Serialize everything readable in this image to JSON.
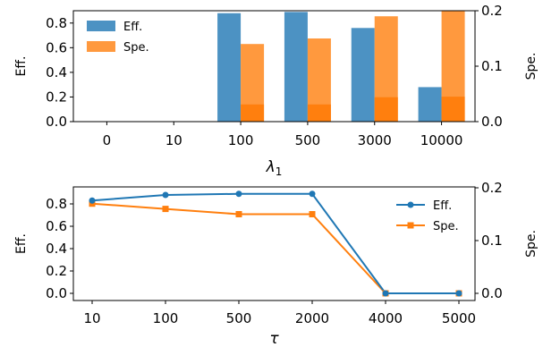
{
  "colors": {
    "eff": "#1f77b4",
    "spe": "#ff7f0e"
  },
  "chart_data": [
    {
      "type": "bar",
      "xlabel_base": "λ",
      "xlabel_sub": "1",
      "ylabel_left": "Eff.",
      "ylabel_right": "Spe.",
      "categories": [
        "0",
        "10",
        "100",
        "500",
        "3000",
        "10000"
      ],
      "ylim_left": [
        0,
        0.9
      ],
      "ylim_right": [
        0,
        0.2
      ],
      "yticks_left": [
        "0.0",
        "0.2",
        "0.4",
        "0.6",
        "0.8"
      ],
      "yticks_right": [
        "0.0",
        "0.1",
        "0.2"
      ],
      "legend_position": "top-left",
      "grid": false,
      "series": [
        {
          "name": "Eff.",
          "axis": "left",
          "values": [
            0,
            0,
            0.88,
            0.89,
            0.76,
            0.28
          ]
        },
        {
          "name": "Spe.",
          "axis": "right",
          "values": [
            0,
            0,
            0.14,
            0.15,
            0.19,
            0.2
          ]
        }
      ],
      "overlay_band_right": [
        0,
        0,
        0.031,
        0.031,
        0.044,
        0.045
      ]
    },
    {
      "type": "line",
      "xlabel": "τ",
      "ylabel_left": "Eff.",
      "ylabel_right": "Spe.",
      "categories": [
        "10",
        "100",
        "500",
        "2000",
        "4000",
        "5000"
      ],
      "ylim_left": [
        0,
        0.9
      ],
      "ylim_right": [
        0,
        0.2
      ],
      "yticks_left": [
        "0.0",
        "0.2",
        "0.4",
        "0.6",
        "0.8"
      ],
      "yticks_right": [
        "0.0",
        "0.1",
        "0.2"
      ],
      "legend_position": "top-right",
      "grid": false,
      "series": [
        {
          "name": "Eff.",
          "axis": "left",
          "marker": "circle",
          "values": [
            0.83,
            0.88,
            0.89,
            0.89,
            0.0,
            0.0
          ]
        },
        {
          "name": "Spe.",
          "axis": "right",
          "marker": "square",
          "values": [
            0.17,
            0.16,
            0.15,
            0.15,
            0.0,
            0.0
          ]
        }
      ]
    }
  ]
}
